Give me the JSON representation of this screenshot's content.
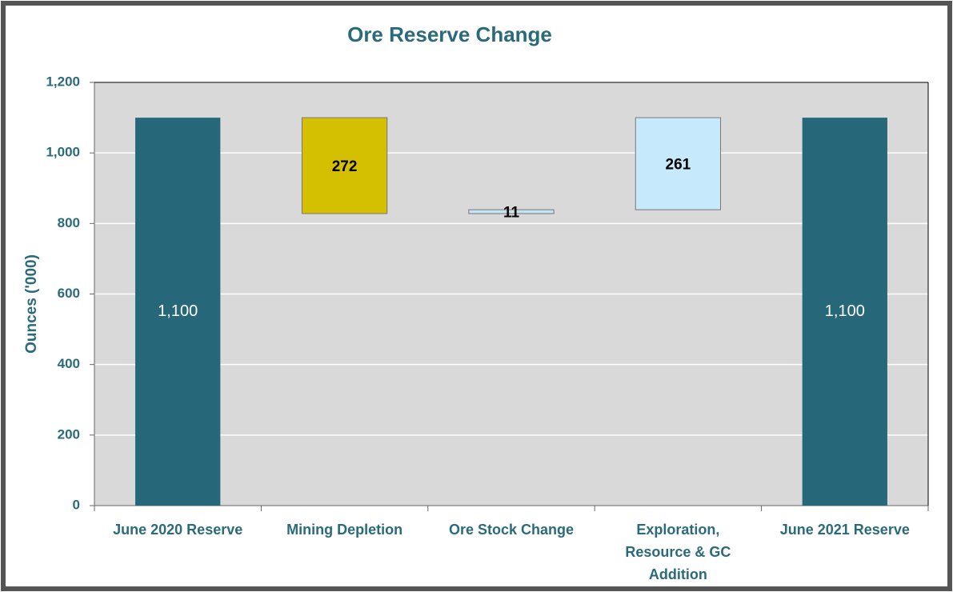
{
  "chart_data": {
    "type": "waterfall",
    "title": "Ore Reserve Change",
    "y_label": "Ounces ('000)",
    "categories": [
      "June 2020 Reserve",
      "Mining Depletion",
      "Ore Stock Change",
      "Exploration, Resource & GC Addition",
      "June 2021 Reserve"
    ],
    "values": [
      1100,
      -272,
      11,
      261,
      1100
    ],
    "value_labels": [
      "1,100",
      "272",
      "11",
      "261",
      "1,100"
    ],
    "colors": [
      "#26687a",
      "#d4c000",
      "#c3e4f0",
      "#c6e9fb",
      "#26687a"
    ],
    "ylim": [
      0,
      1200
    ],
    "yticks": [
      0,
      200,
      400,
      600,
      800,
      {
        "value": 1000,
        "label": "1,000"
      },
      {
        "value": 1200,
        "label": "1,200"
      }
    ],
    "grid": true
  }
}
